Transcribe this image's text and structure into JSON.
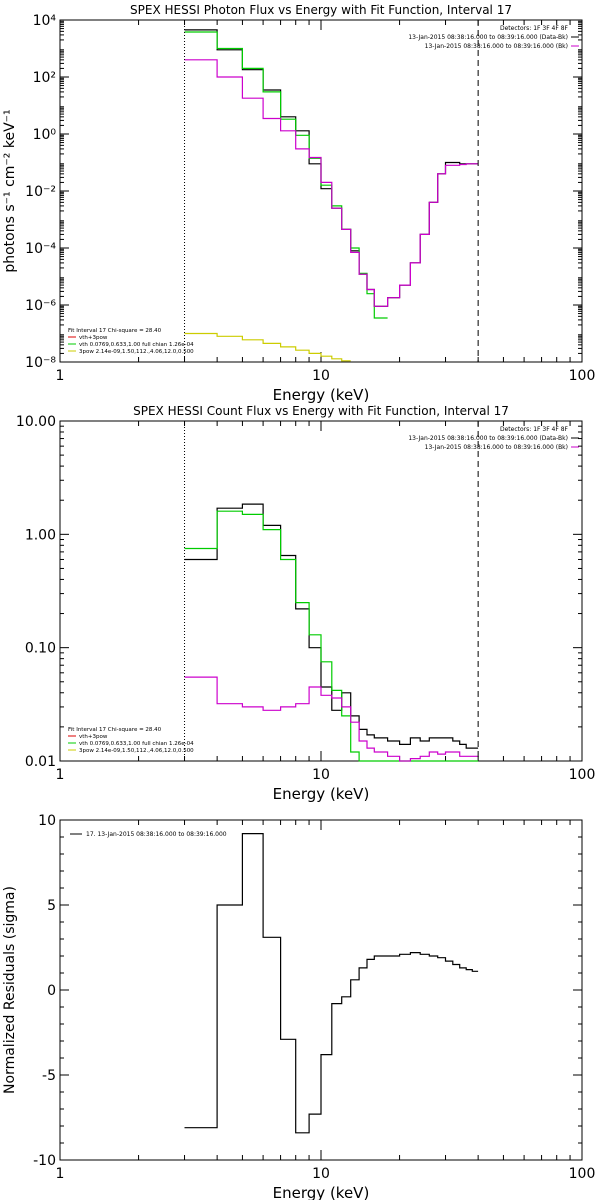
{
  "colors": {
    "black": "#000000",
    "green": "#00cc00",
    "magenta": "#cc00cc",
    "red": "#dd0000",
    "yellow": "#cccc00"
  },
  "chart_data": [
    {
      "type": "line",
      "title": "SPEX HESSI Photon Flux vs Energy with Fit Function, Interval 17",
      "xlabel": "Energy (keV)",
      "ylabel": "photons s⁻¹ cm⁻² keV⁻¹",
      "xscale": "log",
      "yscale": "log",
      "xlim": [
        1,
        100
      ],
      "ylim": [
        1e-08,
        10000.0
      ],
      "xticks": [
        {
          "value": 1,
          "label": "1"
        },
        {
          "value": 10,
          "label": "10"
        },
        {
          "value": 100,
          "label": "100"
        }
      ],
      "yticks": [
        {
          "value": 10000.0,
          "label": "10⁴"
        },
        {
          "value": 100.0,
          "label": "10²"
        },
        {
          "value": 1,
          "label": "10⁰"
        },
        {
          "value": 0.01,
          "label": "10⁻²"
        },
        {
          "value": 0.0001,
          "label": "10⁻⁴"
        },
        {
          "value": 1e-06,
          "label": "10⁻⁶"
        },
        {
          "value": 1e-08,
          "label": "10⁻⁸"
        }
      ],
      "vlines": [
        {
          "x": 3.0,
          "style": "dotted"
        },
        {
          "x": 40,
          "style": "dashed"
        }
      ],
      "legend_top_right": [
        "Detectors: 1F 3F 4F 8F",
        "13-Jan-2015 08:38:16.000 to 08:39:16.000 (Data-Bk)",
        "13-Jan-2015 08:38:16.000 to 08:39:16.000 (Bk)"
      ],
      "legend_bottom_left": [
        "Fit Interval 17    Chi-square = 28.40",
        "vth+3pow",
        "vth 0.0769,0.633,1.00  full chian 1.26e-04",
        "3pow 2.14e-09,1.50,112.,4.06,12.0,0.500"
      ],
      "edges": [
        3.0,
        4.0,
        5.0,
        6.0,
        7.0,
        8.0,
        9.0,
        10.0,
        11.0,
        12.0,
        13.0,
        14.0,
        15.0,
        16.0,
        18.0,
        20.0,
        22.0,
        24.0,
        26.0,
        28.0,
        30.0,
        32.0,
        34.0,
        36.0,
        38.0,
        40.0
      ],
      "series": [
        {
          "name": "13-Jan-2015 08:38:16.000 to 08:39:16.000 (Data-Bk)",
          "color": "black",
          "values": [
            4500,
            900,
            180,
            35,
            4,
            1.3,
            0.09,
            0.012,
            0.0025,
            0.00045,
            8e-05,
            1.2e-05,
            3.5e-06,
            9e-07,
            1.8e-06,
            5e-06,
            3e-05,
            0.0003,
            0.004,
            0.04,
            0.1,
            0.1,
            0.09,
            0.09,
            0.09
          ]
        },
        {
          "name": "vth+3pow",
          "color": "green",
          "values": [
            3800,
            1000,
            200,
            30,
            3.3,
            0.9,
            0.14,
            0.016,
            0.003,
            0.00045,
            0.0001,
            1.3e-05,
            2.5e-06,
            3.5e-07,
            null,
            null,
            null,
            null,
            null,
            null,
            null,
            null,
            null,
            null,
            null
          ]
        },
        {
          "name": "13-Jan-2015 08:38:16.000 to 08:39:16.000 (Bk)",
          "color": "magenta",
          "values": [
            400,
            100,
            18,
            3.5,
            1.3,
            0.3,
            0.15,
            0.02,
            0.0025,
            0.00045,
            7e-05,
            1.2e-05,
            3.5e-06,
            9e-07,
            1.8e-06,
            5e-06,
            3e-05,
            0.0003,
            0.004,
            0.04,
            0.08,
            0.08,
            0.085,
            0.09,
            0.09
          ]
        },
        {
          "name": "3pow",
          "color": "yellow",
          "values": [
            1e-07,
            8e-08,
            6e-08,
            4.5e-08,
            3.4e-08,
            2.6e-08,
            2e-08,
            1.6e-08,
            1.3e-08,
            1.1e-08,
            null,
            null,
            null,
            null,
            null,
            null,
            null,
            null,
            null,
            null,
            null,
            null,
            null,
            null,
            null
          ]
        }
      ]
    },
    {
      "type": "line",
      "title": "SPEX HESSI Count Flux vs Energy with Fit Function, Interval 17",
      "xlabel": "Energy (keV)",
      "xscale": "log",
      "yscale": "log",
      "xlim": [
        1,
        100
      ],
      "ylim": [
        0.01,
        10
      ],
      "xticks": [
        {
          "value": 1,
          "label": "1"
        },
        {
          "value": 10,
          "label": "10"
        },
        {
          "value": 100,
          "label": "100"
        }
      ],
      "yticks": [
        {
          "value": 10,
          "label": "10.00"
        },
        {
          "value": 1,
          "label": "1.00"
        },
        {
          "value": 0.1,
          "label": "0.10"
        },
        {
          "value": 0.01,
          "label": "0.01"
        }
      ],
      "vlines": [
        {
          "x": 3.0,
          "style": "dotted"
        },
        {
          "x": 40,
          "style": "dashed"
        }
      ],
      "legend_top_right": [
        "Detectors: 1F 3F 4F 8F",
        "13-Jan-2015 08:38:16.000 to 08:39:16.000 (Data-Bk)",
        "13-Jan-2015 08:38:16.000 to 08:39:16.000 (Bk)"
      ],
      "legend_bottom_left": [
        "Fit Interval 17    Chi-square = 28.40",
        "vth+3pow",
        "vth 0.0769,0.633,1.00  full chian 1.26e-04",
        "3pow 2.14e-09,1.50,112.,4.06,12.0,0.500"
      ],
      "edges": [
        3.0,
        4.0,
        5.0,
        6.0,
        7.0,
        8.0,
        9.0,
        10.0,
        11.0,
        12.0,
        13.0,
        14.0,
        15.0,
        16.0,
        18.0,
        20.0,
        22.0,
        24.0,
        26.0,
        28.0,
        30.0,
        32.0,
        34.0,
        36.0,
        38.0,
        40.0
      ],
      "series": [
        {
          "name": "13-Jan-2015 08:38:16.000 to 08:39:16.000 (Data-Bk)",
          "color": "black",
          "values": [
            0.6,
            1.7,
            1.85,
            1.2,
            0.65,
            0.22,
            0.1,
            0.045,
            0.028,
            0.04,
            0.025,
            0.019,
            0.017,
            0.016,
            0.015,
            0.014,
            0.016,
            0.015,
            0.016,
            0.016,
            0.016,
            0.015,
            0.014,
            0.013,
            0.013
          ]
        },
        {
          "name": "vth+3pow",
          "color": "green",
          "values": [
            0.75,
            1.6,
            1.5,
            1.1,
            0.6,
            0.25,
            0.13,
            0.075,
            0.042,
            0.025,
            0.012,
            0.009,
            0.01,
            0.01,
            0.01,
            0.01,
            0.01,
            0.01,
            0.01,
            0.01,
            0.01,
            0.01,
            0.01,
            0.01,
            0.01
          ]
        },
        {
          "name": "13-Jan-2015 08:38:16.000 to 08:39:16.000 (Bk)",
          "color": "magenta",
          "values": [
            0.055,
            0.032,
            0.03,
            0.028,
            0.03,
            0.032,
            0.045,
            0.038,
            0.036,
            0.03,
            0.022,
            0.015,
            0.013,
            0.012,
            0.011,
            0.01,
            0.0105,
            0.011,
            0.012,
            0.0115,
            0.012,
            0.012,
            0.011,
            0.011,
            0.011
          ]
        }
      ]
    },
    {
      "type": "line",
      "xlabel": "Energy (keV)",
      "ylabel": "Normalized Residuals (sigma)",
      "xscale": "log",
      "yscale": "linear",
      "xlim": [
        1,
        100
      ],
      "ylim": [
        -10,
        10
      ],
      "xticks": [
        {
          "value": 1,
          "label": "1"
        },
        {
          "value": 10,
          "label": "10"
        },
        {
          "value": 100,
          "label": "100"
        }
      ],
      "yticks": [
        {
          "value": 10,
          "label": "10"
        },
        {
          "value": 5,
          "label": "5"
        },
        {
          "value": 0,
          "label": "0"
        },
        {
          "value": -5,
          "label": "-5"
        },
        {
          "value": -10,
          "label": "-10"
        }
      ],
      "legend_top_left": [
        "17. 13-Jan-2015 08:38:16.000 to 08:39:16.000"
      ],
      "edges": [
        3.0,
        4.0,
        5.0,
        6.0,
        7.0,
        8.0,
        9.0,
        10.0,
        11.0,
        12.0,
        13.0,
        14.0,
        15.0,
        16.0,
        18.0,
        20.0,
        22.0,
        24.0,
        26.0,
        28.0,
        30.0,
        32.0,
        34.0,
        36.0,
        38.0,
        40.0
      ],
      "series": [
        {
          "name": "17. 13-Jan-2015 08:38:16.000 to 08:39:16.000",
          "color": "black",
          "values": [
            -8.1,
            5.0,
            9.2,
            3.1,
            -2.9,
            -8.4,
            -7.3,
            -3.8,
            -0.8,
            -0.4,
            0.6,
            1.3,
            1.8,
            2.0,
            2.0,
            2.1,
            2.2,
            2.1,
            2.0,
            1.9,
            1.7,
            1.5,
            1.3,
            1.2,
            1.1
          ]
        }
      ]
    }
  ]
}
